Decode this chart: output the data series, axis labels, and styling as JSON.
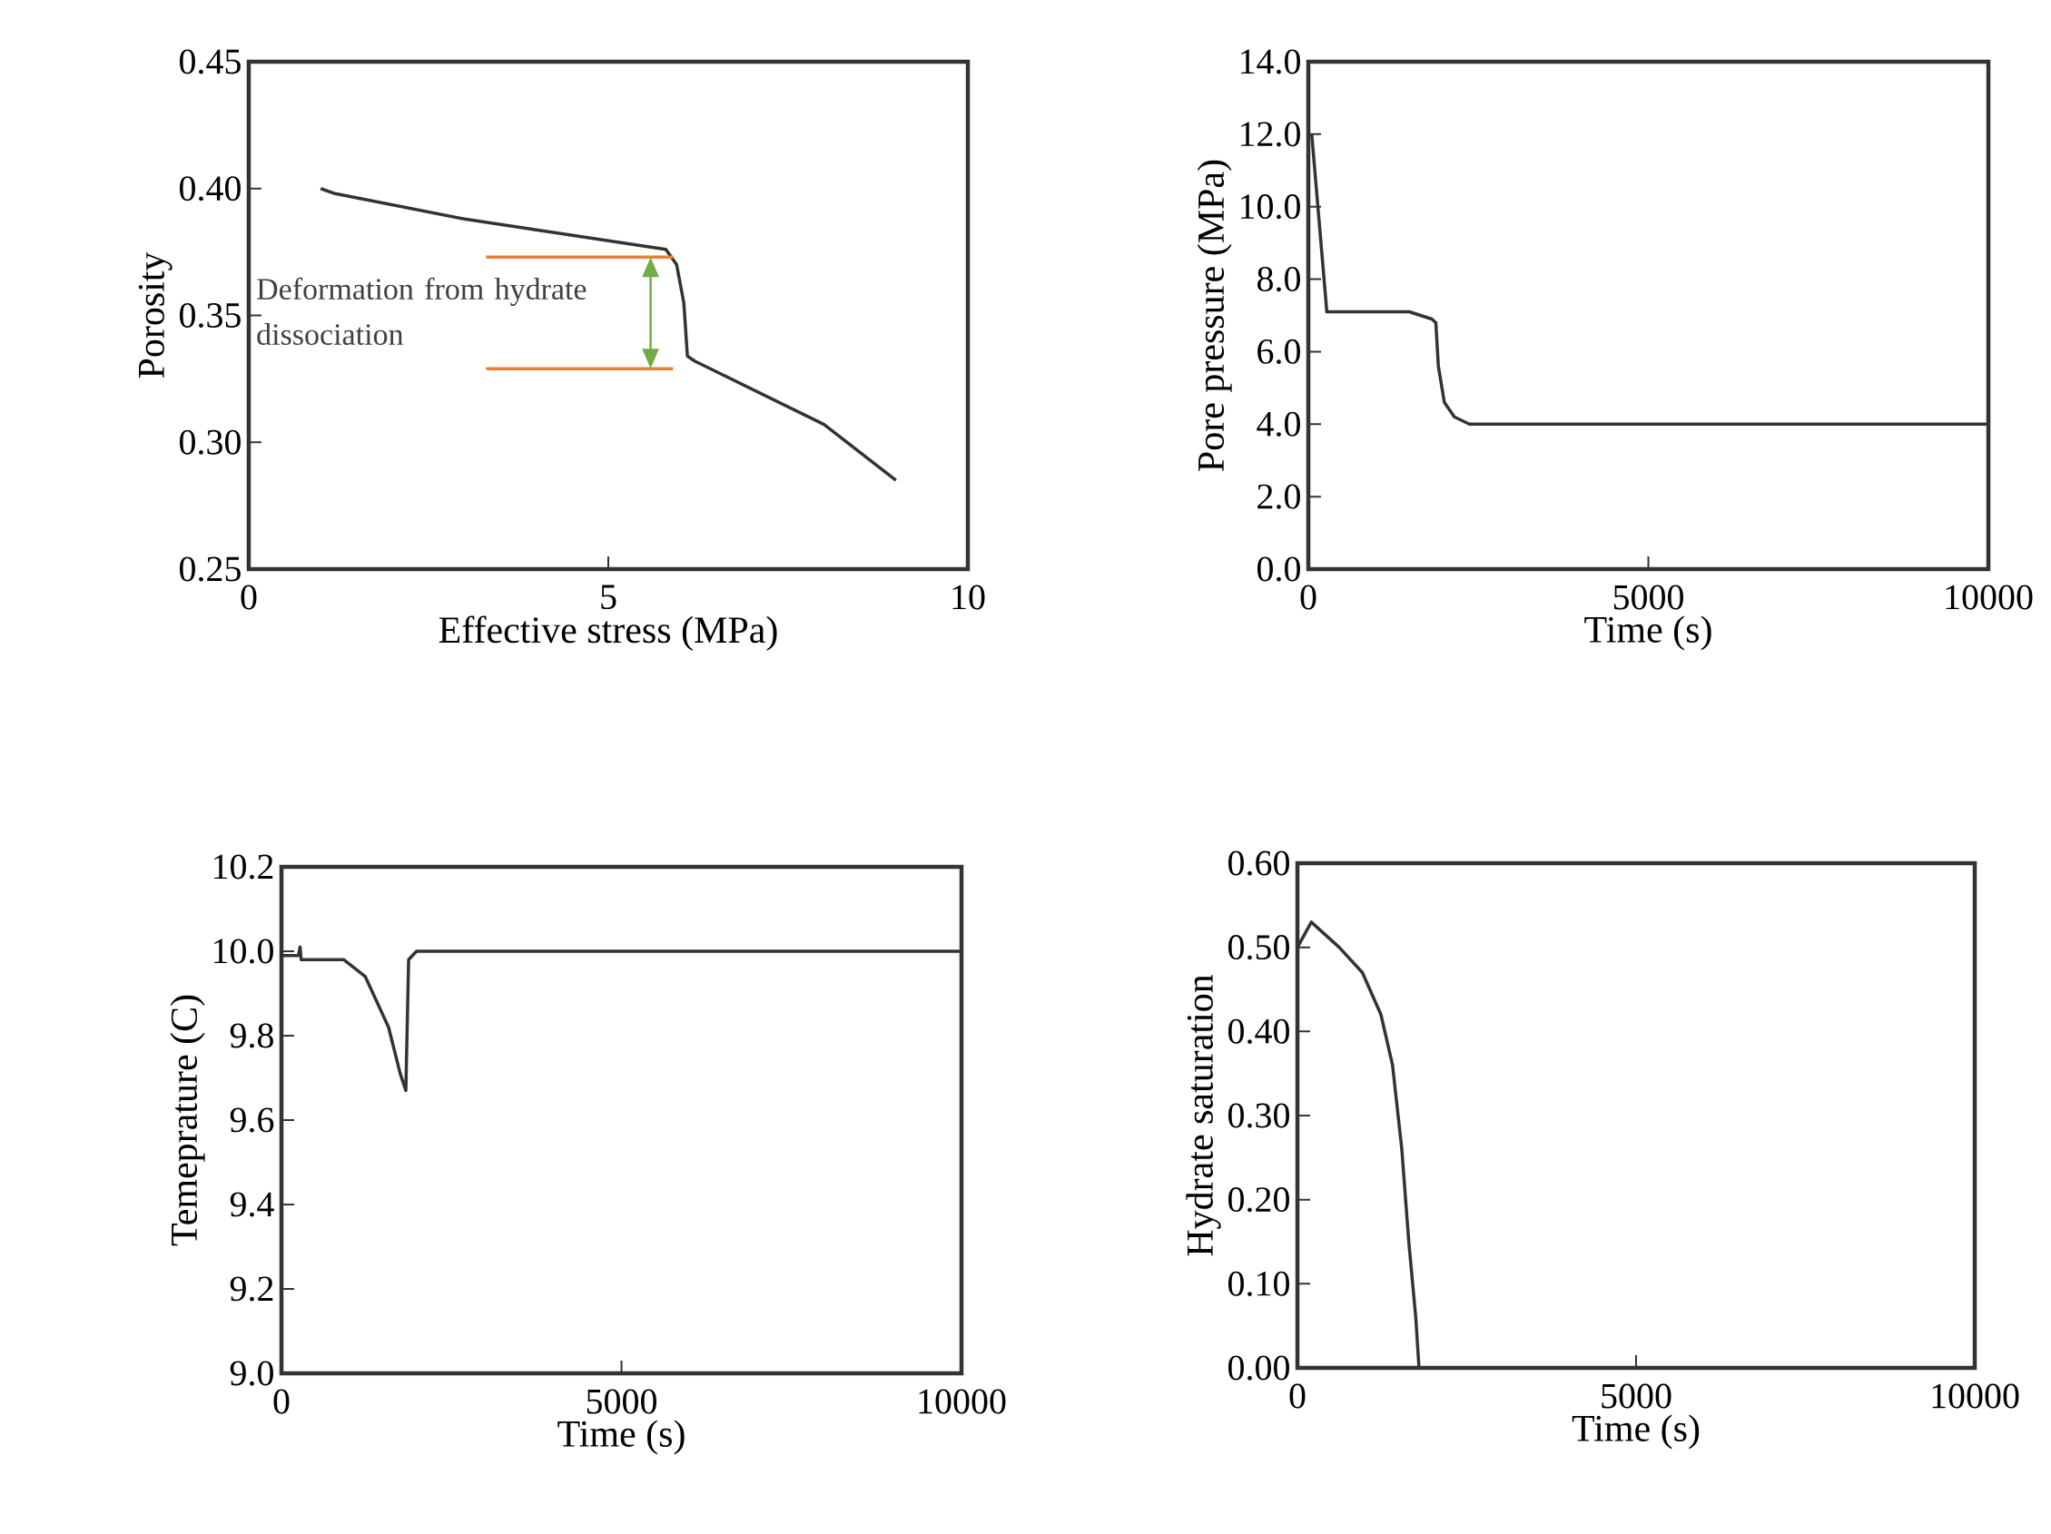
{
  "chart_data": [
    {
      "type": "line",
      "xlabel": "Effective stress (MPa)",
      "ylabel": "Porosity",
      "xlim": [
        0,
        10
      ],
      "ylim": [
        0.25,
        0.45
      ],
      "xticks": [
        0,
        5,
        10
      ],
      "yticks": [
        {
          "value": 0.25,
          "label": "0.25"
        },
        {
          "value": 0.3,
          "label": "0.30"
        },
        {
          "value": 0.35,
          "label": "0.35"
        },
        {
          "value": 0.4,
          "label": "0.40"
        },
        {
          "value": 0.45,
          "label": "0.45"
        }
      ],
      "annotations": [
        "Deformation from hydrate dissociation"
      ],
      "series": [
        {
          "color": "#333333",
          "x": [
            1.0,
            1.2,
            3.0,
            5.8,
            5.95,
            6.05,
            6.1,
            6.2,
            8.0,
            9.0
          ],
          "values": [
            0.4,
            0.398,
            0.388,
            0.376,
            0.37,
            0.355,
            0.334,
            0.332,
            0.307,
            0.285
          ]
        },
        {
          "color": "#ed7d31",
          "x": [
            3.3,
            5.9
          ],
          "values": [
            0.373,
            0.373
          ]
        },
        {
          "color": "#ed7d31",
          "x": [
            3.3,
            5.9
          ],
          "values": [
            0.329,
            0.329
          ]
        }
      ]
    },
    {
      "type": "line",
      "xlabel": "Time (s)",
      "ylabel": "Pore pressure (MPa)",
      "xlim": [
        0,
        10000
      ],
      "ylim": [
        0,
        14
      ],
      "xticks": [
        0,
        5000,
        10000
      ],
      "yticks": [
        {
          "value": 0,
          "label": "0.0"
        },
        {
          "value": 2,
          "label": "2.0"
        },
        {
          "value": 4,
          "label": "4.0"
        },
        {
          "value": 6,
          "label": "6.0"
        },
        {
          "value": 8,
          "label": "8.0"
        },
        {
          "value": 10,
          "label": "10.0"
        },
        {
          "value": 12,
          "label": "12.0"
        },
        {
          "value": 14,
          "label": "14.0"
        }
      ],
      "series": [
        {
          "color": "#333333",
          "x": [
            50,
            272,
            1485,
            1816,
            1875,
            1912,
            2000,
            2147,
            2368,
            10000
          ],
          "values": [
            12.0,
            7.1,
            7.1,
            6.9,
            6.8,
            5.6,
            4.6,
            4.2,
            4.0,
            4.0
          ]
        }
      ]
    },
    {
      "type": "line",
      "xlabel": "Time (s)",
      "ylabel": "Temeprature (C)",
      "xlim": [
        0,
        10000
      ],
      "ylim": [
        9.0,
        10.2
      ],
      "xticks": [
        0,
        5000,
        10000
      ],
      "yticks": [
        {
          "value": 9.0,
          "label": "9.0"
        },
        {
          "value": 9.2,
          "label": "9.2"
        },
        {
          "value": 9.4,
          "label": "9.4"
        },
        {
          "value": 9.6,
          "label": "9.6"
        },
        {
          "value": 9.8,
          "label": "9.8"
        },
        {
          "value": 10.0,
          "label": "10.0"
        },
        {
          "value": 10.2,
          "label": "10.2"
        }
      ],
      "series": [
        {
          "color": "#333333",
          "x": [
            0,
            250,
            274,
            290,
            438,
            918,
            1233,
            1575,
            1747,
            1829,
            1870,
            1986,
            10000
          ],
          "values": [
            9.99,
            9.99,
            10.01,
            9.98,
            9.98,
            9.98,
            9.94,
            9.82,
            9.71,
            9.67,
            9.98,
            10.0,
            10.0
          ]
        }
      ]
    },
    {
      "type": "line",
      "xlabel": "Time (s)",
      "ylabel": "Hydrate saturation",
      "xlim": [
        0,
        10000
      ],
      "ylim": [
        0,
        0.6
      ],
      "xticks": [
        0,
        5000,
        10000
      ],
      "yticks": [
        {
          "value": 0,
          "label": "0.00"
        },
        {
          "value": 0.1,
          "label": "0.10"
        },
        {
          "value": 0.2,
          "label": "0.20"
        },
        {
          "value": 0.3,
          "label": "0.30"
        },
        {
          "value": 0.4,
          "label": "0.40"
        },
        {
          "value": 0.5,
          "label": "0.50"
        },
        {
          "value": 0.6,
          "label": "0.60"
        }
      ],
      "series": [
        {
          "color": "#333333",
          "x": [
            0,
            205,
            616,
            959,
            1233,
            1404,
            1541,
            1644,
            1747,
            1795,
            10000
          ],
          "values": [
            0.5,
            0.53,
            0.5,
            0.47,
            0.42,
            0.36,
            0.26,
            0.15,
            0.06,
            0.0,
            0.0
          ]
        }
      ]
    }
  ]
}
